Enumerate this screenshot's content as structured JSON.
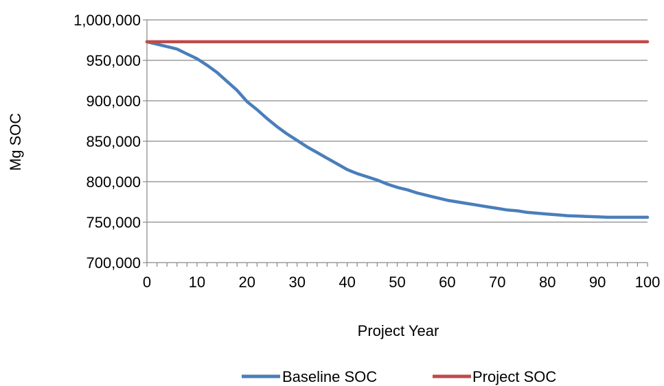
{
  "chart_data": {
    "type": "line",
    "title": "",
    "xlabel": "Project Year",
    "ylabel": "Mg SOC",
    "xlim": [
      0,
      100
    ],
    "ylim": [
      700000,
      1000000
    ],
    "x_ticks": [
      0,
      10,
      20,
      30,
      40,
      50,
      60,
      70,
      80,
      90,
      100
    ],
    "x_tick_labels": [
      "0",
      "10",
      "20",
      "30",
      "40",
      "50",
      "60",
      "70",
      "80",
      "90",
      "100"
    ],
    "y_ticks": [
      700000,
      750000,
      800000,
      850000,
      900000,
      950000,
      1000000
    ],
    "y_tick_labels": [
      "700,000",
      "750,000",
      "800,000",
      "850,000",
      "900,000",
      "950,000",
      "1,000,000"
    ],
    "grid": "horizontal",
    "legend_position": "bottom",
    "x": [
      0,
      2,
      4,
      6,
      8,
      10,
      12,
      14,
      16,
      18,
      20,
      22,
      24,
      26,
      28,
      30,
      32,
      34,
      36,
      38,
      40,
      42,
      44,
      46,
      48,
      50,
      52,
      54,
      56,
      58,
      60,
      62,
      64,
      66,
      68,
      70,
      72,
      74,
      76,
      78,
      80,
      82,
      84,
      86,
      88,
      90,
      92,
      94,
      96,
      98,
      100
    ],
    "series": [
      {
        "name": "Baseline SOC",
        "color": "#4a7ebb",
        "values": [
          973000,
          970000,
          967000,
          964000,
          958000,
          952000,
          944000,
          935000,
          924000,
          913000,
          899000,
          889000,
          878000,
          868000,
          859000,
          851000,
          843000,
          836000,
          829000,
          822000,
          815000,
          810000,
          806000,
          802000,
          797000,
          793000,
          790000,
          786000,
          783000,
          780000,
          777000,
          775000,
          773000,
          771000,
          769000,
          767000,
          765000,
          764000,
          762000,
          761000,
          760000,
          759000,
          758000,
          757500,
          757000,
          756500,
          756000,
          756000,
          756000,
          756000,
          756000
        ]
      },
      {
        "name": "Project SOC",
        "color": "#be4b48",
        "values": [
          973000,
          973000,
          973000,
          973000,
          973000,
          973000,
          973000,
          973000,
          973000,
          973000,
          973000,
          973000,
          973000,
          973000,
          973000,
          973000,
          973000,
          973000,
          973000,
          973000,
          973000,
          973000,
          973000,
          973000,
          973000,
          973000,
          973000,
          973000,
          973000,
          973000,
          973000,
          973000,
          973000,
          973000,
          973000,
          973000,
          973000,
          973000,
          973000,
          973000,
          973000,
          973000,
          973000,
          973000,
          973000,
          973000,
          973000,
          973000,
          973000,
          973000,
          973000
        ]
      }
    ]
  }
}
